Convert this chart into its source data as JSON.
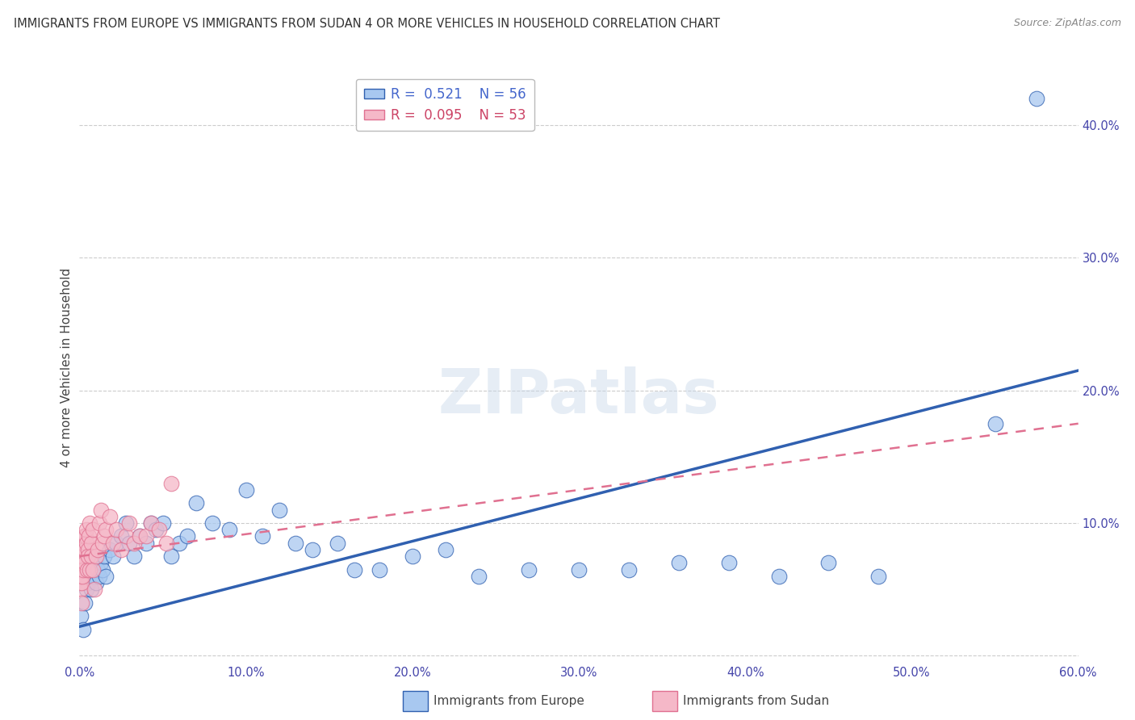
{
  "title": "IMMIGRANTS FROM EUROPE VS IMMIGRANTS FROM SUDAN 4 OR MORE VEHICLES IN HOUSEHOLD CORRELATION CHART",
  "source": "Source: ZipAtlas.com",
  "ylabel": "4 or more Vehicles in Household",
  "xlabel_europe": "Immigrants from Europe",
  "xlabel_sudan": "Immigrants from Sudan",
  "watermark": "ZIPatlas",
  "legend_europe_R": "0.521",
  "legend_europe_N": "56",
  "legend_sudan_R": "0.095",
  "legend_sudan_N": "53",
  "color_europe": "#a8c8f0",
  "color_sudan": "#f5b8c8",
  "color_europe_line": "#3060b0",
  "color_sudan_line": "#e07090",
  "europe_x": [
    0.001,
    0.002,
    0.003,
    0.004,
    0.005,
    0.005,
    0.006,
    0.007,
    0.008,
    0.009,
    0.01,
    0.011,
    0.012,
    0.013,
    0.014,
    0.015,
    0.016,
    0.018,
    0.02,
    0.022,
    0.025,
    0.028,
    0.03,
    0.033,
    0.036,
    0.04,
    0.043,
    0.046,
    0.05,
    0.055,
    0.06,
    0.065,
    0.07,
    0.08,
    0.09,
    0.1,
    0.11,
    0.12,
    0.13,
    0.14,
    0.155,
    0.165,
    0.18,
    0.2,
    0.22,
    0.24,
    0.27,
    0.3,
    0.33,
    0.36,
    0.39,
    0.42,
    0.45,
    0.48,
    0.55,
    0.575
  ],
  "europe_y": [
    0.03,
    0.02,
    0.04,
    0.05,
    0.06,
    0.055,
    0.065,
    0.05,
    0.06,
    0.07,
    0.055,
    0.065,
    0.06,
    0.07,
    0.065,
    0.075,
    0.06,
    0.08,
    0.075,
    0.085,
    0.09,
    0.1,
    0.085,
    0.075,
    0.09,
    0.085,
    0.1,
    0.095,
    0.1,
    0.075,
    0.085,
    0.09,
    0.115,
    0.1,
    0.095,
    0.125,
    0.09,
    0.11,
    0.085,
    0.08,
    0.085,
    0.065,
    0.065,
    0.075,
    0.08,
    0.06,
    0.065,
    0.065,
    0.065,
    0.07,
    0.07,
    0.06,
    0.07,
    0.06,
    0.175,
    0.42
  ],
  "sudan_x": [
    0.0003,
    0.0004,
    0.0005,
    0.0006,
    0.0007,
    0.0008,
    0.0009,
    0.001,
    0.001,
    0.0012,
    0.0013,
    0.0015,
    0.0016,
    0.0018,
    0.002,
    0.0022,
    0.0025,
    0.003,
    0.003,
    0.0035,
    0.004,
    0.004,
    0.0045,
    0.005,
    0.005,
    0.0055,
    0.006,
    0.006,
    0.007,
    0.007,
    0.008,
    0.008,
    0.009,
    0.01,
    0.011,
    0.012,
    0.013,
    0.014,
    0.015,
    0.016,
    0.018,
    0.02,
    0.022,
    0.025,
    0.028,
    0.03,
    0.033,
    0.036,
    0.04,
    0.043,
    0.048,
    0.052,
    0.055
  ],
  "sudan_y": [
    0.055,
    0.07,
    0.065,
    0.08,
    0.075,
    0.05,
    0.06,
    0.065,
    0.07,
    0.055,
    0.04,
    0.075,
    0.06,
    0.08,
    0.085,
    0.065,
    0.09,
    0.07,
    0.08,
    0.09,
    0.085,
    0.095,
    0.065,
    0.08,
    0.075,
    0.09,
    0.1,
    0.065,
    0.085,
    0.075,
    0.065,
    0.095,
    0.05,
    0.075,
    0.08,
    0.1,
    0.11,
    0.085,
    0.09,
    0.095,
    0.105,
    0.085,
    0.095,
    0.08,
    0.09,
    0.1,
    0.085,
    0.09,
    0.09,
    0.1,
    0.095,
    0.085,
    0.13
  ],
  "xlim": [
    0.0,
    0.6
  ],
  "ylim": [
    -0.005,
    0.44
  ],
  "xticks": [
    0.0,
    0.1,
    0.2,
    0.3,
    0.4,
    0.5,
    0.6
  ],
  "yticks": [
    0.0,
    0.1,
    0.2,
    0.3,
    0.4
  ],
  "xtick_labels": [
    "0.0%",
    "10.0%",
    "20.0%",
    "30.0%",
    "40.0%",
    "50.0%",
    "60.0%"
  ],
  "ytick_labels": [
    "",
    "10.0%",
    "20.0%",
    "30.0%",
    "40.0%"
  ],
  "europe_trend_x": [
    0.0,
    0.6
  ],
  "europe_trend_y": [
    0.022,
    0.215
  ],
  "sudan_trend_x": [
    0.0,
    0.6
  ],
  "sudan_trend_y": [
    0.075,
    0.175
  ],
  "background_color": "#ffffff",
  "grid_color": "#cccccc"
}
